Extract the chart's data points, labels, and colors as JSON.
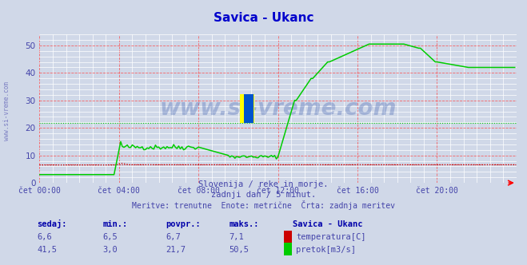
{
  "title": "Savica - Ukanc",
  "title_color": "#0000cc",
  "background_color": "#d0d8e8",
  "plot_bg_color": "#d0d8e8",
  "grid_color_major": "#ff4444",
  "grid_color_minor": "#ffffff",
  "xlim": [
    0,
    287
  ],
  "ylim": [
    0,
    52
  ],
  "yticks": [
    0,
    10,
    20,
    30,
    40,
    50
  ],
  "xtick_labels": [
    "čet 00:00",
    "čet 04:00",
    "čet 08:00",
    "čet 12:00",
    "čet 16:00",
    "čet 20:00"
  ],
  "xtick_positions": [
    0,
    48,
    96,
    144,
    192,
    240
  ],
  "temp_color": "#cc0000",
  "flow_color": "#00cc00",
  "temp_avg": 6.7,
  "flow_avg": 21.7,
  "subtitle1": "Slovenija / reke in morje.",
  "subtitle2": "zadnji dan / 5 minut.",
  "subtitle3": "Meritve: trenutne  Enote: metrične  Črta: zadnja meritev",
  "text_color": "#4444aa",
  "watermark": "www.si-vreme.com",
  "watermark_color": "#3355aa",
  "watermark_alpha": 0.3,
  "legend_title": "Savica - Ukanc",
  "legend_color": "#0000aa",
  "table_headers": [
    "sedaj:",
    "min.:",
    "povpr.:",
    "maks.:"
  ],
  "temp_row": [
    "6,6",
    "6,5",
    "6,7",
    "7,1"
  ],
  "flow_row": [
    "41,5",
    "3,0",
    "21,7",
    "50,5"
  ],
  "label_temp": "temperatura[C]",
  "label_flow": "pretok[m3/s]",
  "side_label": "www.si-vreme.com"
}
